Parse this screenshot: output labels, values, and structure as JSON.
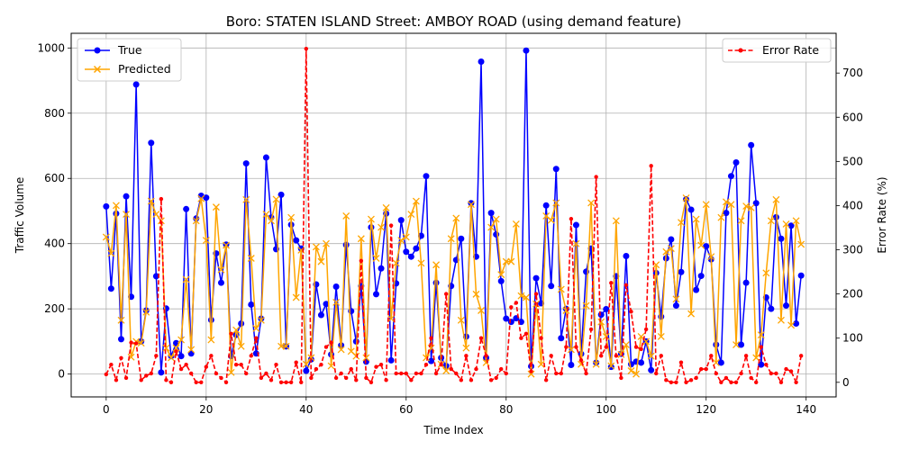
{
  "chart_data": {
    "type": "line",
    "title": "Boro: STATEN ISLAND Street: AMBOY ROAD (using demand feature)",
    "xlabel": "Time Index",
    "ylabel": "Traffic Volume",
    "y2label": "Error Rate (%)",
    "xlim": [
      -7,
      146
    ],
    "ylim": [
      -70,
      1045
    ],
    "y2lim": [
      -33,
      790
    ],
    "xticks": [
      0,
      20,
      40,
      60,
      80,
      100,
      120,
      140
    ],
    "yticks": [
      0,
      200,
      400,
      600,
      800,
      1000
    ],
    "y2ticks": [
      0,
      100,
      200,
      300,
      400,
      500,
      600,
      700
    ],
    "grid": true,
    "legend_left": "upper-left",
    "legend_right": "upper-right",
    "colors": {
      "true": "#0000ff",
      "predicted": "#ffa500",
      "error": "#ff0000",
      "grid": "#b0b0b0"
    },
    "series": [
      {
        "name": "True",
        "axis": "left",
        "values": [
          514,
          262,
          492,
          107,
          545,
          237,
          888,
          100,
          195,
          709,
          300,
          5,
          201,
          55,
          95,
          55,
          506,
          63,
          477,
          547,
          541,
          166,
          370,
          280,
          397,
          55,
          120,
          155,
          646,
          213,
          63,
          170,
          664,
          480,
          383,
          550,
          85,
          458,
          410,
          385,
          10,
          45,
          275,
          181,
          215,
          60,
          268,
          88,
          396,
          193,
          100,
          270,
          38,
          450,
          245,
          324,
          492,
          42,
          278,
          472,
          375,
          360,
          385,
          424,
          607,
          40,
          280,
          50,
          25,
          270,
          350,
          415,
          115,
          524,
          360,
          958,
          50,
          494,
          428,
          285,
          170,
          160,
          171,
          160,
          992,
          24,
          294,
          217,
          517,
          270,
          629,
          110,
          200,
          28,
          457,
          62,
          314,
          385,
          35,
          182,
          199,
          22,
          300,
          62,
          362,
          30,
          38,
          35,
          100,
          12,
          310,
          176,
          355,
          413,
          210,
          313,
          536,
          504,
          258,
          301,
          392,
          352,
          90,
          35,
          494,
          607,
          649,
          90,
          280,
          702,
          524,
          29,
          235,
          200,
          481,
          415,
          210,
          455,
          155,
          302
        ]
      },
      {
        "name": "Predicted",
        "axis": "left",
        "values": [
          420,
          370,
          517,
          165,
          490,
          52,
          100,
          95,
          190,
          530,
          490,
          470,
          80,
          50,
          80,
          105,
          290,
          75,
          470,
          538,
          410,
          105,
          512,
          320,
          395,
          5,
          135,
          85,
          535,
          355,
          140,
          165,
          490,
          470,
          536,
          85,
          85,
          480,
          235,
          380,
          30,
          50,
          390,
          345,
          400,
          25,
          220,
          75,
          485,
          70,
          55,
          415,
          50,
          475,
          355,
          450,
          510,
          170,
          340,
          410,
          420,
          490,
          530,
          340,
          50,
          80,
          335,
          30,
          10,
          415,
          478,
          165,
          80,
          520,
          245,
          195,
          35,
          450,
          475,
          305,
          345,
          345,
          460,
          240,
          235,
          0,
          215,
          30,
          485,
          472,
          525,
          260,
          195,
          75,
          400,
          30,
          210,
          525,
          30,
          160,
          115,
          25,
          470,
          60,
          90,
          10,
          0,
          115,
          100,
          55,
          335,
          115,
          375,
          385,
          230,
          465,
          540,
          185,
          475,
          395,
          520,
          360,
          35,
          480,
          528,
          520,
          90,
          470,
          515,
          510,
          50,
          120,
          310,
          470,
          535,
          165,
          460,
          150,
          470,
          398
        ]
      },
      {
        "name": "Error Rate",
        "axis": "right",
        "values": [
          18,
          40,
          5,
          55,
          10,
          90,
          88,
          5,
          15,
          20,
          60,
          415,
          5,
          0,
          70,
          30,
          40,
          20,
          0,
          0,
          35,
          60,
          20,
          10,
          0,
          110,
          40,
          40,
          20,
          60,
          100,
          10,
          20,
          5,
          40,
          0,
          0,
          0,
          45,
          0,
          755,
          10,
          30,
          40,
          80,
          90,
          10,
          20,
          10,
          30,
          5,
          275,
          10,
          0,
          35,
          40,
          5,
          355,
          20,
          20,
          20,
          5,
          20,
          20,
          40,
          100,
          20,
          40,
          200,
          30,
          20,
          5,
          60,
          5,
          30,
          100,
          60,
          5,
          10,
          30,
          20,
          170,
          180,
          100,
          110,
          25,
          200,
          100,
          5,
          60,
          20,
          20,
          80,
          370,
          80,
          50,
          20,
          120,
          465,
          60,
          80,
          225,
          60,
          10,
          220,
          160,
          80,
          75,
          120,
          490,
          20,
          60,
          5,
          0,
          0,
          45,
          0,
          5,
          10,
          30,
          30,
          60,
          20,
          0,
          10,
          0,
          0,
          20,
          60,
          10,
          0,
          80,
          40,
          20,
          20,
          0,
          30,
          25,
          0,
          60
        ]
      }
    ]
  }
}
